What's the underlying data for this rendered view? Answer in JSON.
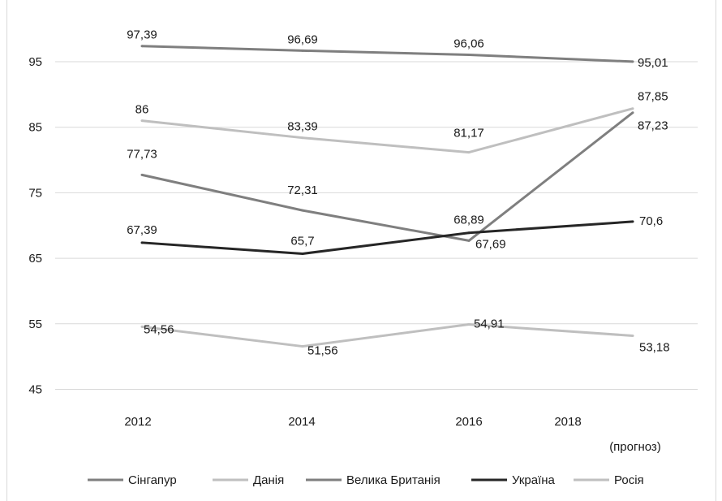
{
  "chart_data": {
    "type": "line",
    "categories": [
      "2012",
      "2014",
      "2016",
      "2018\n(прогноз)"
    ],
    "x_tick_labels": [
      "2012",
      "2014",
      "2016",
      "2018"
    ],
    "x_note": "(прогноз)",
    "ylim": [
      45,
      100
    ],
    "yticks": [
      45,
      55,
      65,
      75,
      85,
      95
    ],
    "grid": true,
    "legend_position": "bottom",
    "series": [
      {
        "name": "Сінгапур",
        "color": "#7f7f7f",
        "values": [
          97.39,
          96.69,
          96.06,
          95.01
        ],
        "labels": [
          "97,39",
          "96,69",
          "96,06",
          "95,01"
        ]
      },
      {
        "name": "Данія",
        "color": "#bfbfbf",
        "values": [
          86,
          83.39,
          81.17,
          87.85
        ],
        "labels": [
          "86",
          "83,39",
          "81,17",
          "87,85"
        ]
      },
      {
        "name": "Велика Британія",
        "color": "#7f7f7f",
        "values": [
          77.73,
          72.31,
          67.69,
          87.23
        ],
        "labels": [
          "77,73",
          "72,31",
          "67,69",
          "87,23"
        ]
      },
      {
        "name": "Україна",
        "color": "#262626",
        "values": [
          67.39,
          65.7,
          68.89,
          70.6
        ],
        "labels": [
          "67,39",
          "65,7",
          "68,89",
          "70,6"
        ]
      },
      {
        "name": "Росія",
        "color": "#bfbfbf",
        "values": [
          54.56,
          51.56,
          54.91,
          53.18
        ],
        "labels": [
          "54,56",
          "51,56",
          "54,91",
          "53,18"
        ]
      }
    ]
  }
}
